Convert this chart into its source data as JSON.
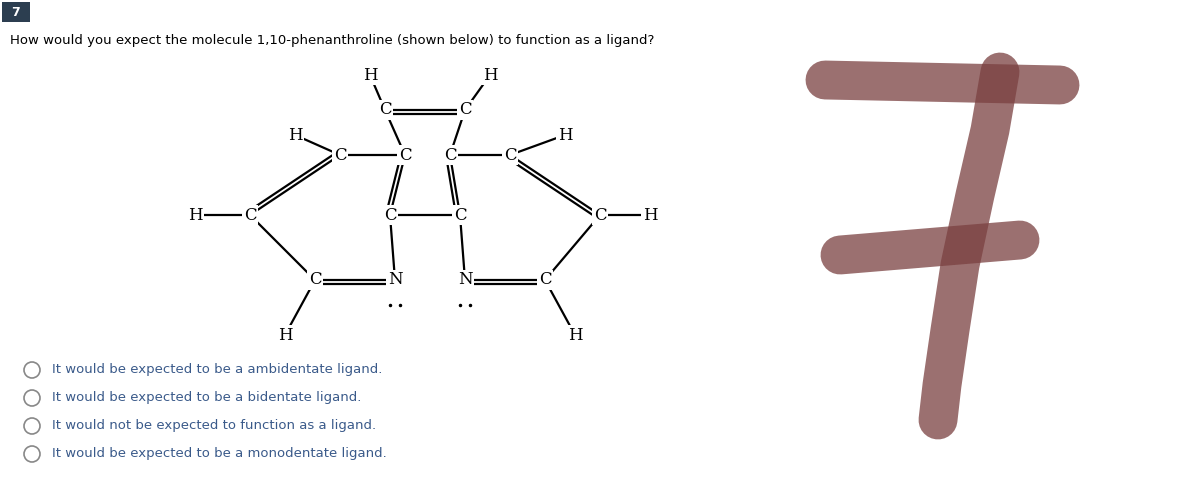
{
  "question_number": "7",
  "question_text": "How would you expect the molecule 1,10-phenanthroline (shown below) to function as a ligand?",
  "choices": [
    "It would be expected to be a ambidentate ligand.",
    "It would be expected to be a bidentate ligand.",
    "It would not be expected to function as a ligand.",
    "It would be expected to be a monodentate ligand."
  ],
  "bg_color": "#ffffff",
  "text_color": "#000000",
  "choice_color": "#3a5a8a",
  "number_bg": "#2c3e50",
  "number_fg": "#ffffff",
  "seven_color": "#7a4040",
  "seven_alpha": 0.75
}
